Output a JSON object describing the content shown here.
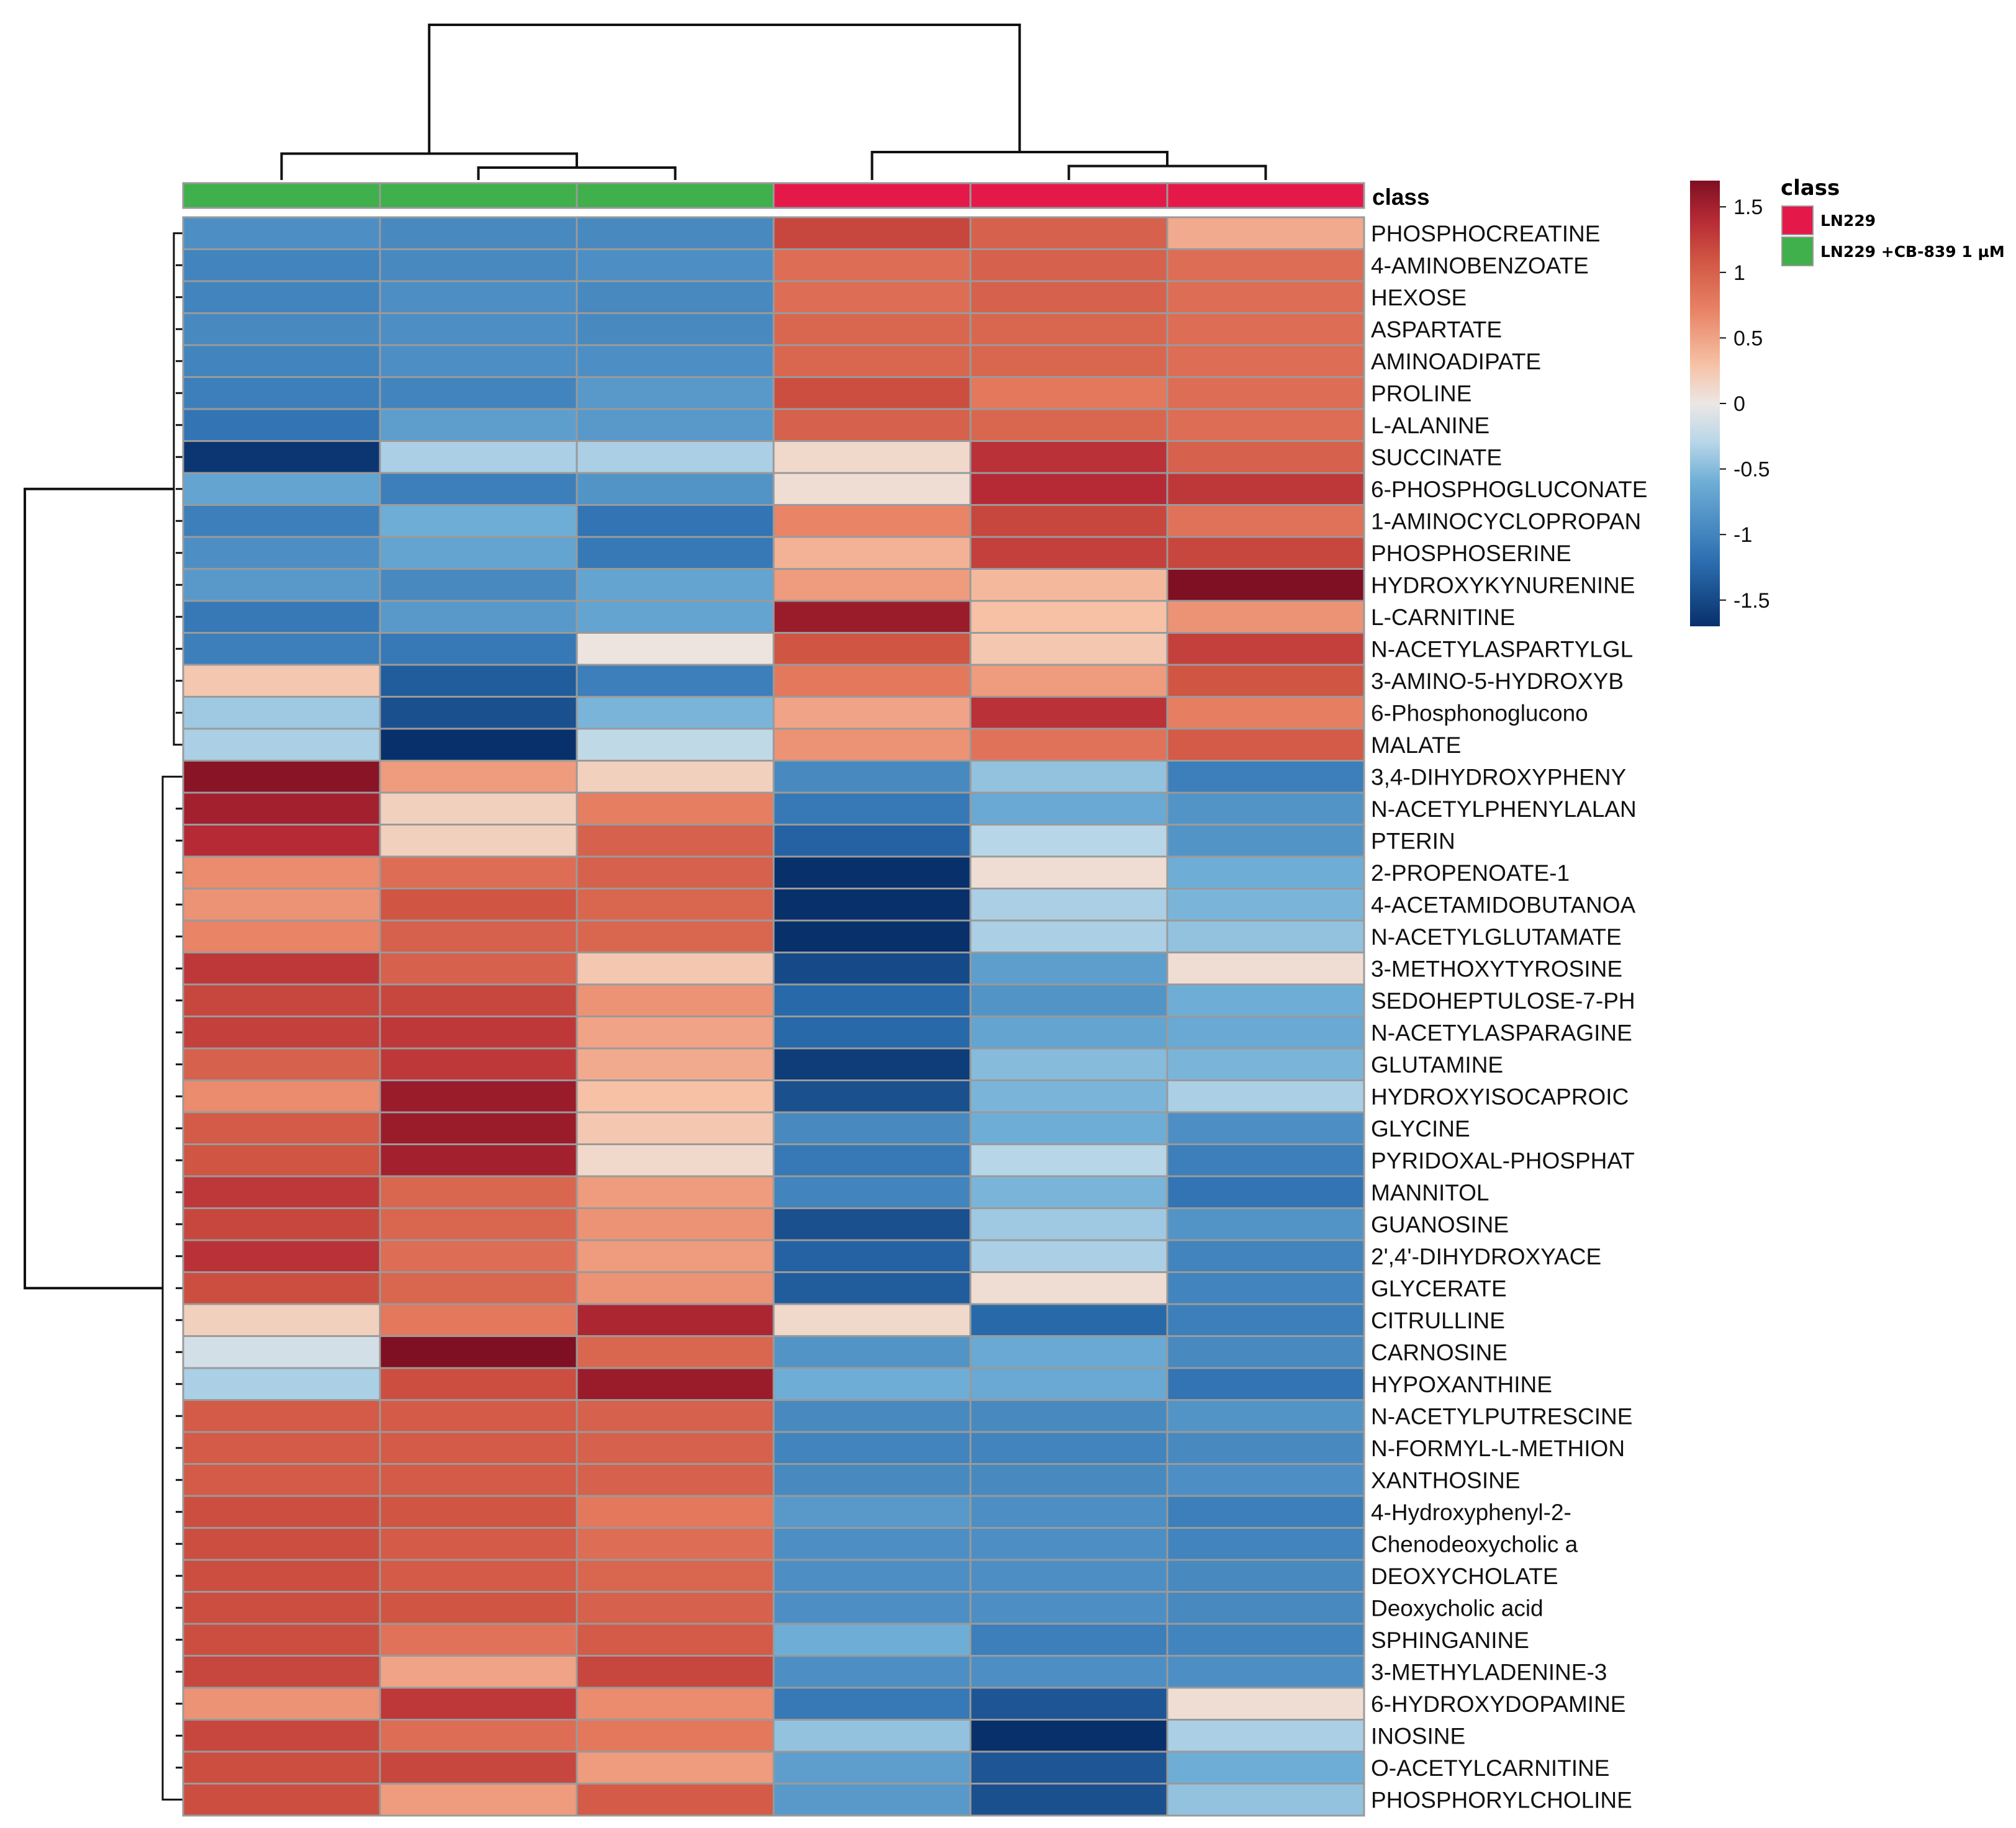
{
  "chart_data": {
    "type": "heatmap",
    "title": "",
    "column_class_annotation_label": "class",
    "columns": [
      {
        "class": "LN229 +CB-839 1 µM"
      },
      {
        "class": "LN229 +CB-839 1 µM"
      },
      {
        "class": "LN229 +CB-839 1 µM"
      },
      {
        "class": "LN229"
      },
      {
        "class": "LN229"
      },
      {
        "class": "LN229"
      }
    ],
    "rows": [
      "PHOSPHOCREATINE",
      "4-AMINOBENZOATE",
      "HEXOSE",
      "ASPARTATE",
      "AMINOADIPATE",
      "PROLINE",
      "L-ALANINE",
      "SUCCINATE",
      "6-PHOSPHOGLUCONATE",
      "1-AMINOCYCLOPROPAN",
      "PHOSPHOSERINE",
      "HYDROXYKYNURENINE",
      "L-CARNITINE",
      "N-ACETYLASPARTYLGL",
      "3-AMINO-5-HYDROXYB",
      "6-Phosphonoglucono",
      "MALATE",
      "3,4-DIHYDROXYPHENY",
      "N-ACETYLPHENYLALAN",
      "PTERIN",
      "2-PROPENOATE-1",
      "4-ACETAMIDOBUTANOA",
      "N-ACETYLGLUTAMATE",
      "3-METHOXYTYROSINE",
      "SEDOHEPTULOSE-7-PH",
      "N-ACETYLASPARAGINE",
      "GLUTAMINE",
      "HYDROXYISOCAPROIC",
      "GLYCINE",
      "PYRIDOXAL-PHOSPHAT",
      "MANNITOL",
      "GUANOSINE",
      "2',4'-DIHYDROXYACE",
      "GLYCERATE",
      "CITRULLINE",
      "CARNOSINE",
      "HYPOXANTHINE",
      "N-ACETYLPUTRESCINE",
      "N-FORMYL-L-METHION",
      "XANTHOSINE",
      "4-Hydroxyphenyl-2-",
      "Chenodeoxycholic a",
      "DEOXYCHOLATE",
      "Deoxycholic acid",
      "SPHINGANINE",
      "3-METHYLADENINE-3",
      "6-HYDROXYDOPAMINE",
      "INOSINE",
      "O-ACETYLCARNITINE",
      "PHOSPHORYLCHOLINE"
    ],
    "values": [
      [
        -0.9,
        -0.95,
        -0.95,
        1.2,
        1.0,
        0.45
      ],
      [
        -1.0,
        -0.95,
        -0.9,
        0.9,
        1.0,
        0.9
      ],
      [
        -1.0,
        -0.9,
        -0.95,
        0.9,
        1.0,
        0.9
      ],
      [
        -0.95,
        -0.9,
        -0.95,
        0.95,
        0.95,
        0.9
      ],
      [
        -1.0,
        -0.9,
        -0.9,
        0.95,
        0.95,
        0.9
      ],
      [
        -1.05,
        -1.0,
        -0.8,
        1.15,
        0.8,
        0.9
      ],
      [
        -1.15,
        -0.75,
        -0.8,
        1.0,
        0.95,
        0.9
      ],
      [
        -1.65,
        -0.35,
        -0.35,
        0.12,
        1.35,
        1.0
      ],
      [
        -0.7,
        -1.05,
        -0.85,
        0.08,
        1.4,
        1.3
      ],
      [
        -1.05,
        -0.6,
        -1.15,
        0.7,
        1.2,
        0.85
      ],
      [
        -0.9,
        -0.7,
        -1.1,
        0.4,
        1.25,
        1.2
      ],
      [
        -0.8,
        -0.95,
        -0.7,
        0.55,
        0.35,
        1.7
      ],
      [
        -1.1,
        -0.8,
        -0.7,
        1.55,
        0.3,
        0.6
      ],
      [
        -1.05,
        -1.1,
        0.02,
        1.1,
        0.25,
        1.25
      ],
      [
        0.25,
        -1.35,
        -1.05,
        0.8,
        0.55,
        1.1
      ],
      [
        -0.4,
        -1.45,
        -0.55,
        0.5,
        1.35,
        0.75
      ],
      [
        -0.35,
        -1.8,
        -0.25,
        0.6,
        0.85,
        1.05
      ],
      [
        1.65,
        0.55,
        0.18,
        -0.95,
        -0.45,
        -1.05
      ],
      [
        1.5,
        0.18,
        0.75,
        -1.1,
        -0.65,
        -0.85
      ],
      [
        1.4,
        0.18,
        1.0,
        -1.3,
        -0.3,
        -0.85
      ],
      [
        0.65,
        0.9,
        1.0,
        -1.75,
        0.08,
        -0.6
      ],
      [
        0.6,
        1.1,
        0.95,
        -1.7,
        -0.35,
        -0.55
      ],
      [
        0.7,
        1.0,
        0.95,
        -1.8,
        -0.35,
        -0.45
      ],
      [
        1.3,
        1.0,
        0.25,
        -1.5,
        -0.75,
        0.08
      ],
      [
        1.2,
        1.2,
        0.6,
        -1.25,
        -0.85,
        -0.6
      ],
      [
        1.25,
        1.3,
        0.5,
        -1.25,
        -0.7,
        -0.65
      ],
      [
        1.0,
        1.3,
        0.45,
        -1.6,
        -0.5,
        -0.55
      ],
      [
        0.65,
        1.55,
        0.3,
        -1.45,
        -0.55,
        -0.35
      ],
      [
        1.05,
        1.55,
        0.25,
        -0.95,
        -0.6,
        -0.9
      ],
      [
        1.1,
        1.5,
        0.12,
        -1.1,
        -0.3,
        -1.05
      ],
      [
        1.3,
        0.95,
        0.55,
        -1.0,
        -0.55,
        -1.15
      ],
      [
        1.2,
        0.95,
        0.6,
        -1.45,
        -0.4,
        -0.85
      ],
      [
        1.35,
        0.9,
        0.55,
        -1.3,
        -0.35,
        -1.0
      ],
      [
        1.15,
        0.95,
        0.6,
        -1.35,
        0.08,
        -1.0
      ],
      [
        0.18,
        0.8,
        1.45,
        0.12,
        -1.25,
        -1.05
      ],
      [
        -0.15,
        1.7,
        0.95,
        -0.85,
        -0.65,
        -0.95
      ],
      [
        -0.35,
        1.15,
        1.55,
        -0.6,
        -0.65,
        -1.15
      ],
      [
        1.05,
        1.05,
        1.0,
        -0.95,
        -0.95,
        -0.85
      ],
      [
        1.05,
        1.05,
        1.0,
        -1.0,
        -1.0,
        -0.95
      ],
      [
        1.05,
        1.05,
        1.0,
        -0.95,
        -0.95,
        -0.9
      ],
      [
        1.15,
        1.1,
        0.8,
        -0.8,
        -0.9,
        -1.05
      ],
      [
        1.15,
        1.05,
        0.9,
        -0.9,
        -0.9,
        -1.0
      ],
      [
        1.15,
        1.05,
        0.95,
        -0.9,
        -0.9,
        -0.95
      ],
      [
        1.15,
        1.1,
        1.0,
        -0.9,
        -0.9,
        -0.95
      ],
      [
        1.15,
        0.85,
        1.05,
        -0.6,
        -1.05,
        -1.0
      ],
      [
        1.2,
        0.5,
        1.2,
        -0.9,
        -0.9,
        -0.9
      ],
      [
        0.6,
        1.3,
        0.65,
        -1.1,
        -1.4,
        0.08
      ],
      [
        1.2,
        0.9,
        0.8,
        -0.45,
        -1.8,
        -0.35
      ],
      [
        1.15,
        1.2,
        0.55,
        -0.75,
        -1.4,
        -0.6
      ],
      [
        1.15,
        0.55,
        1.05,
        -0.8,
        -1.45,
        -0.45
      ]
    ],
    "color_scale": {
      "min": -1.7,
      "max": 1.7,
      "stops": [
        [
          -1.7,
          "#08306B"
        ],
        [
          -1.2,
          "#2C6FB1"
        ],
        [
          -0.6,
          "#6EAED6"
        ],
        [
          -0.3,
          "#B7D6E8"
        ],
        [
          0.0,
          "#ECE7E4"
        ],
        [
          0.3,
          "#F6C1A5"
        ],
        [
          0.7,
          "#E98466"
        ],
        [
          1.1,
          "#D05543"
        ],
        [
          1.4,
          "#B52A35"
        ],
        [
          1.7,
          "#7F0F22"
        ]
      ],
      "ticks": [
        "1.5",
        "1",
        "0.5",
        "0",
        "-0.5",
        "-1",
        "-1.5"
      ],
      "tick_values": [
        1.5,
        1.0,
        0.5,
        0.0,
        -0.5,
        -1.0,
        -1.5
      ]
    },
    "legend": {
      "title": "class",
      "position": "top-right",
      "entries": [
        {
          "label": "LN229",
          "color": "#E5184A"
        },
        {
          "label": "LN229 +CB-839 1 µM",
          "color": "#3FB04B"
        }
      ]
    },
    "column_dendrogram": {
      "merges": [
        [
          1,
          2,
          0.08
        ],
        [
          0,
          6,
          0.17
        ],
        [
          4,
          5,
          0.09
        ],
        [
          3,
          8,
          0.18
        ],
        [
          7,
          9,
          1.0
        ]
      ]
    },
    "row_dendrogram": {
      "merges": [
        [
          0,
          16,
          1.0
        ],
        [
          17,
          49,
          0.92
        ],
        [
          50,
          51,
          3.6
        ]
      ]
    }
  }
}
